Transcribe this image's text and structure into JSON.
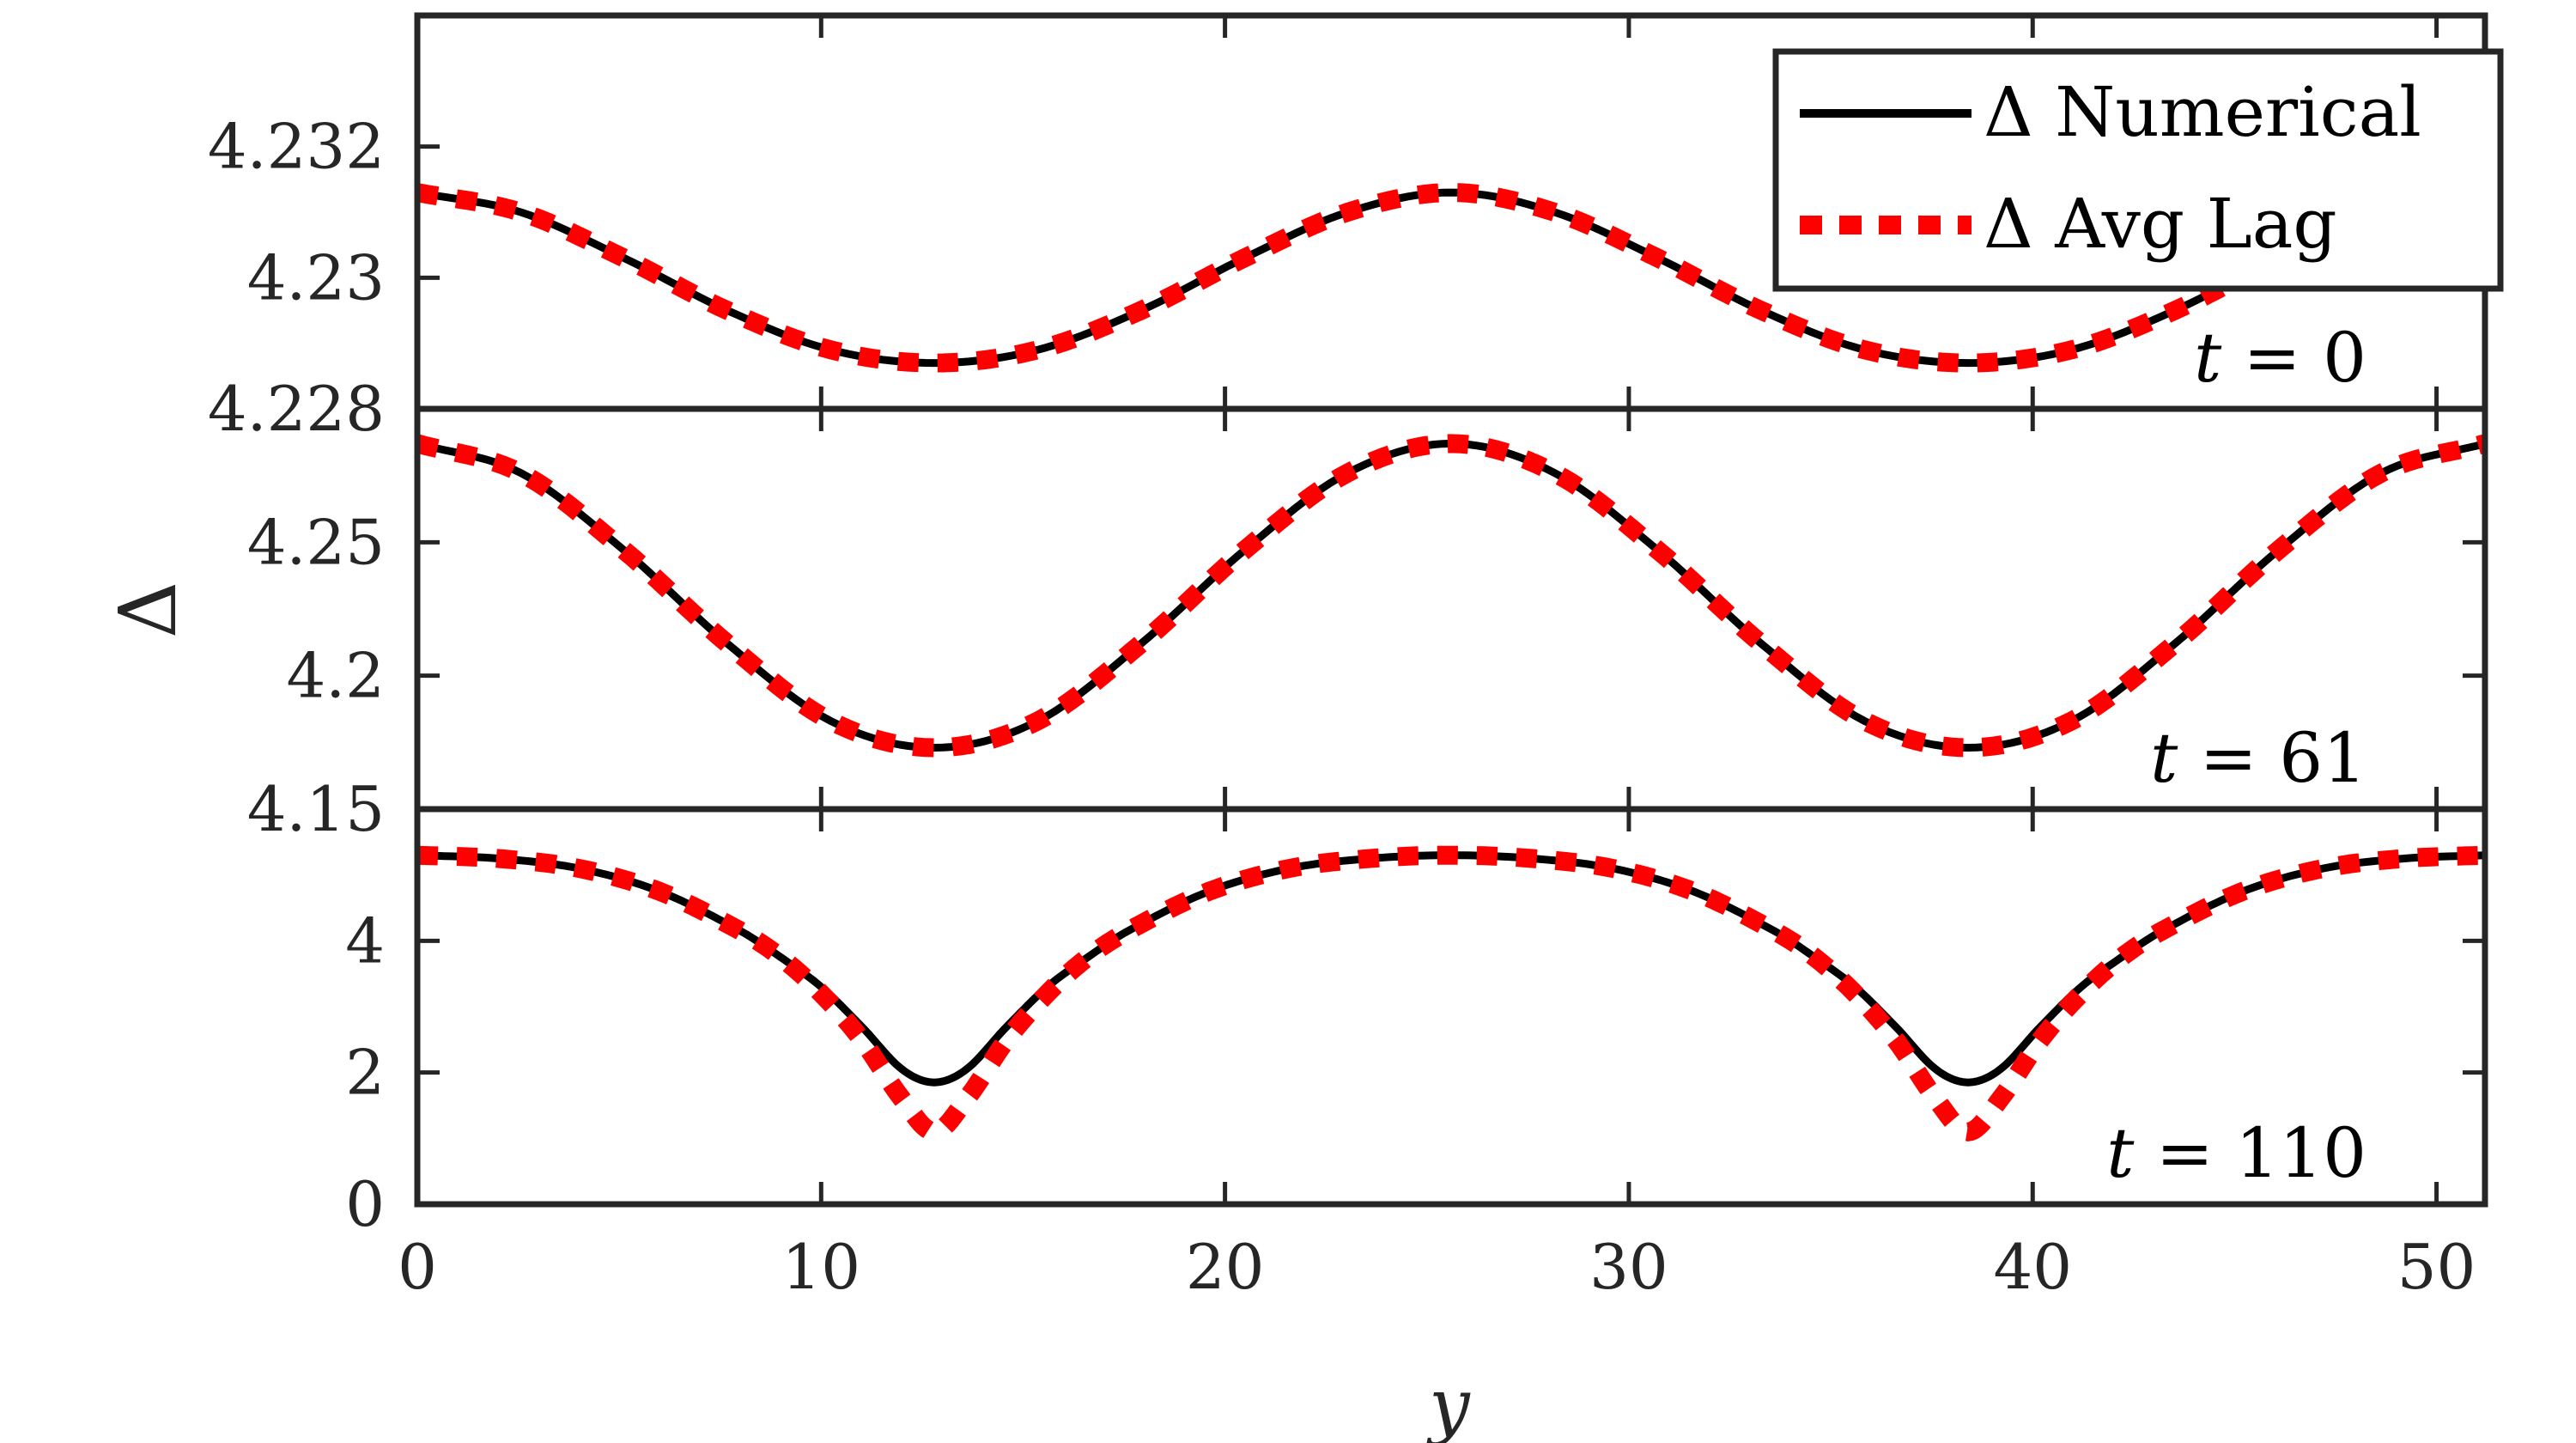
{
  "chart_data": {
    "type": "line",
    "xlabel": "y",
    "ylabel": "Δ",
    "xlim": [
      0,
      51.2
    ],
    "xticks": [
      0,
      10,
      20,
      30,
      40,
      50
    ],
    "grid": false,
    "legend": {
      "placement": "top-right",
      "entries": [
        "Δ Numerical",
        "Δ Avg Lag"
      ]
    },
    "colors": {
      "numerical": "#000000",
      "avg_lag": "#ff0000",
      "axes": "#262626"
    },
    "period": 25.6,
    "panels": [
      {
        "annotation_var": "t",
        "annotation_value": "= 0",
        "ylim": [
          4.228,
          4.234
        ],
        "yticks": [
          4.228,
          4.23,
          4.232
        ],
        "ytick_labels": [
          "4.228",
          "4.23",
          "4.232"
        ],
        "x": [
          0,
          2.56,
          5.12,
          7.68,
          10.24,
          12.8,
          15.36,
          17.92,
          20.48,
          23.04,
          25.6
        ],
        "numerical": [
          4.2313,
          4.231,
          4.2303,
          4.2295,
          4.2289,
          4.2287,
          4.2289,
          4.2295,
          4.2303,
          4.231,
          4.2313
        ],
        "avg_lag": [
          4.2313,
          4.231,
          4.2303,
          4.2295,
          4.2289,
          4.2287,
          4.2289,
          4.2295,
          4.2303,
          4.231,
          4.2313
        ]
      },
      {
        "annotation_var": "t",
        "annotation_value": "= 61",
        "ylim": [
          4.15,
          4.3
        ],
        "yticks": [
          4.15,
          4.2,
          4.25
        ],
        "ytick_labels": [
          "4.15",
          "4.2",
          "4.25"
        ],
        "x": [
          0,
          2.56,
          5.12,
          7.68,
          10.24,
          12.8,
          15.36,
          17.92,
          20.48,
          23.04,
          25.6
        ],
        "numerical": [
          4.287,
          4.276,
          4.247,
          4.212,
          4.183,
          4.173,
          4.183,
          4.212,
          4.247,
          4.276,
          4.287
        ],
        "avg_lag": [
          4.287,
          4.276,
          4.247,
          4.212,
          4.183,
          4.173,
          4.183,
          4.212,
          4.247,
          4.276,
          4.287
        ]
      },
      {
        "annotation_var": "t",
        "annotation_value": "= 110",
        "ylim": [
          0,
          6
        ],
        "yticks": [
          0,
          2,
          4
        ],
        "ytick_labels": [
          "0",
          "2",
          "4"
        ],
        "x": [
          0,
          2,
          4,
          6,
          8,
          9,
          10,
          11,
          12,
          12.8,
          13.6,
          14.6,
          15.6,
          16.6,
          17.6,
          19.6,
          21.6,
          23.6,
          25.6
        ],
        "numerical": [
          5.3,
          5.25,
          5.1,
          4.75,
          4.15,
          3.75,
          3.3,
          2.7,
          2.05,
          1.85,
          2.05,
          2.7,
          3.3,
          3.75,
          4.15,
          4.75,
          5.1,
          5.25,
          5.3
        ],
        "avg_lag": [
          5.3,
          5.25,
          5.1,
          4.75,
          4.15,
          3.75,
          3.2,
          2.5,
          1.6,
          1.1,
          1.6,
          2.5,
          3.2,
          3.75,
          4.15,
          4.75,
          5.1,
          5.25,
          5.3
        ]
      }
    ]
  }
}
